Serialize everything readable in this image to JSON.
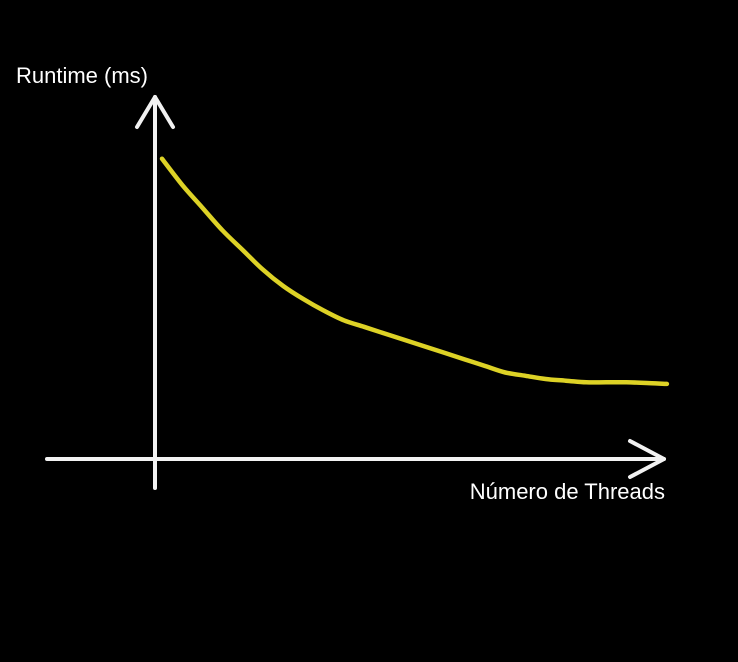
{
  "chart_data": {
    "type": "line",
    "title": "",
    "xlabel": "Número de Threads",
    "ylabel": "Runtime (ms)",
    "ticks": false,
    "grid": false,
    "legend": "none",
    "series": [
      {
        "color": "#ddd226",
        "x": [
          0,
          0.6,
          1.2,
          1.8,
          2.4,
          3.0,
          3.6,
          4.2,
          4.8,
          5.4,
          6.0,
          6.6,
          7.2,
          7.8,
          8.4,
          9.0,
          9.6,
          10.2,
          10.8,
          11.4,
          12.0,
          12.6,
          13.2,
          13.8,
          14.4,
          15.0
        ],
        "y": [
          92,
          84,
          77,
          70,
          64,
          58,
          53,
          49,
          45.5,
          42.5,
          40.5,
          38.5,
          36.5,
          34.5,
          32.5,
          30.5,
          28.5,
          26.5,
          25.5,
          24.5,
          24,
          23.5,
          23.5,
          23.5,
          23.3,
          23
        ]
      }
    ],
    "xlim": [
      0,
      15.3
    ],
    "ylim": [
      0,
      110
    ]
  }
}
